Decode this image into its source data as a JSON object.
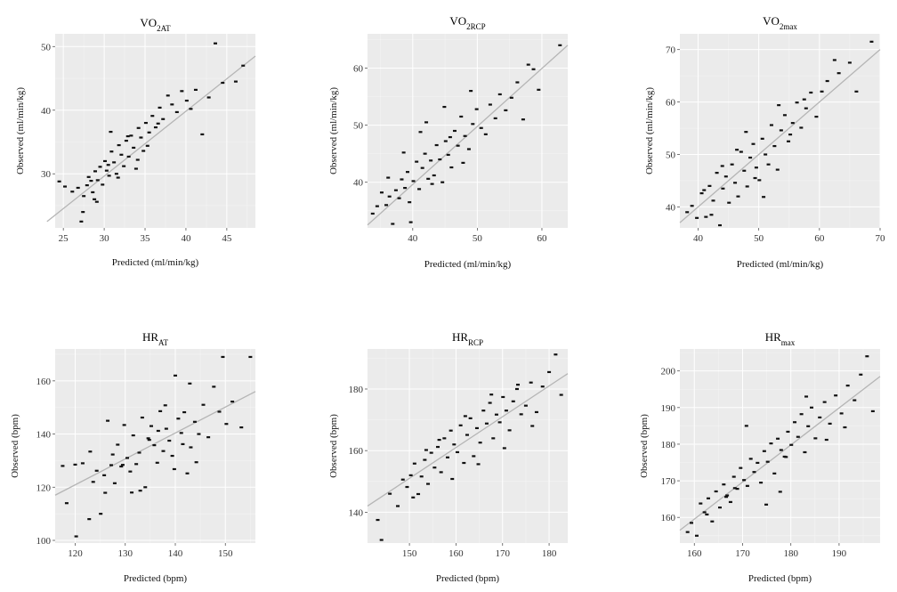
{
  "chart_data": [
    {
      "type": "scatter",
      "title": {
        "main": "VO",
        "sub": "2AT"
      },
      "xlabel": "Predicted (ml/min/kg)",
      "ylabel": "Observed (ml/min/kg)",
      "xlim": [
        24,
        48.5
      ],
      "ylim": [
        21.5,
        52
      ],
      "xticks": [
        25,
        30,
        35,
        40,
        45
      ],
      "yticks": [
        30,
        40,
        50
      ],
      "fit_line": [
        [
          23,
          22.5
        ],
        [
          48.5,
          48.5
        ]
      ],
      "x": [
        24.5,
        25.2,
        26.1,
        26.8,
        27.2,
        27.5,
        27.9,
        28.1,
        28.4,
        28.6,
        28.9,
        29.2,
        29.5,
        29.8,
        30.1,
        30.3,
        30.6,
        30.9,
        31.2,
        31.5,
        31.8,
        32.1,
        32.4,
        32.7,
        33.0,
        33.3,
        33.6,
        33.9,
        34.2,
        34.5,
        34.8,
        35.1,
        35.5,
        35.9,
        36.3,
        36.8,
        37.2,
        37.8,
        38.3,
        38.9,
        39.5,
        40.1,
        40.6,
        41.2,
        42.0,
        42.8,
        43.6,
        44.5,
        46.1,
        47.0,
        27.4,
        28.8,
        30.5,
        31.7,
        32.9,
        34.1,
        35.3,
        36.6,
        29.1,
        30.8
      ],
      "y": [
        28.8,
        28.0,
        27.2,
        27.8,
        22.5,
        26.5,
        28.2,
        29.5,
        28.9,
        27.1,
        30.4,
        29.0,
        31.1,
        28.3,
        32.0,
        30.5,
        29.7,
        33.5,
        31.8,
        30.0,
        34.5,
        33.0,
        31.2,
        35.2,
        32.7,
        36.0,
        34.1,
        30.8,
        37.2,
        35.7,
        33.6,
        38.0,
        36.5,
        39.1,
        37.3,
        40.4,
        38.6,
        42.3,
        40.9,
        39.7,
        43.0,
        41.5,
        40.2,
        43.2,
        36.2,
        42.0,
        50.5,
        44.3,
        44.5,
        47.0,
        24.0,
        26.0,
        31.4,
        29.4,
        35.9,
        32.2,
        34.4,
        37.9,
        25.6,
        36.6
      ]
    },
    {
      "type": "scatter",
      "title": {
        "main": "VO",
        "sub": "2RCP"
      },
      "xlabel": "Predicted (ml/min/kg)",
      "ylabel": "Observed (ml/min/kg)",
      "xlim": [
        33,
        64
      ],
      "ylim": [
        32,
        66
      ],
      "xticks": [
        40,
        50,
        60
      ],
      "yticks": [
        40,
        50,
        60
      ],
      "fit_line": [
        [
          33,
          32.5
        ],
        [
          64,
          64
        ]
      ],
      "x": [
        33.8,
        34.5,
        35.2,
        35.9,
        36.4,
        36.9,
        37.4,
        37.9,
        38.3,
        38.8,
        39.2,
        39.7,
        40.1,
        40.6,
        41.0,
        41.5,
        41.9,
        42.4,
        42.8,
        43.3,
        43.7,
        44.2,
        44.6,
        45.1,
        45.5,
        46.0,
        46.5,
        47.0,
        47.5,
        48.1,
        48.7,
        49.3,
        49.9,
        50.6,
        51.3,
        52.0,
        52.8,
        53.5,
        54.4,
        55.3,
        56.2,
        57.1,
        57.9,
        58.7,
        59.5,
        62.8,
        38.6,
        39.5,
        41.2,
        43.0,
        45.8,
        47.8,
        49.0,
        36.2,
        42.1,
        44.9
      ],
      "y": [
        34.5,
        35.8,
        38.2,
        36.0,
        37.5,
        32.7,
        38.6,
        37.2,
        40.5,
        39.0,
        41.8,
        33.0,
        40.2,
        43.6,
        38.8,
        42.5,
        45.0,
        40.6,
        43.8,
        41.2,
        46.5,
        44.0,
        40.0,
        47.2,
        44.8,
        42.6,
        49.0,
        46.4,
        51.5,
        48.1,
        45.8,
        50.2,
        52.8,
        49.5,
        48.4,
        53.6,
        51.2,
        55.4,
        52.6,
        54.8,
        57.5,
        51.0,
        60.6,
        59.8,
        56.2,
        64.0,
        45.2,
        36.5,
        48.8,
        39.7,
        47.9,
        43.4,
        56.0,
        40.8,
        50.5,
        53.2
      ]
    },
    {
      "type": "scatter",
      "title": {
        "main": "VO",
        "sub": "2max"
      },
      "xlabel": "Predicted (ml/min/kg)",
      "ylabel": "Observed (ml/min/kg)",
      "xlim": [
        37,
        70
      ],
      "ylim": [
        36,
        73
      ],
      "xticks": [
        40,
        50,
        60,
        70
      ],
      "yticks": [
        40,
        50,
        60,
        70
      ],
      "fit_line": [
        [
          37,
          37
        ],
        [
          70,
          70
        ]
      ],
      "x": [
        38.2,
        39.0,
        39.8,
        40.6,
        41.3,
        41.9,
        42.5,
        43.1,
        43.6,
        44.1,
        44.6,
        45.1,
        45.6,
        46.1,
        46.6,
        47.1,
        47.6,
        48.1,
        48.6,
        49.1,
        49.6,
        50.1,
        50.6,
        51.1,
        51.6,
        52.1,
        52.6,
        53.1,
        53.7,
        54.3,
        54.9,
        55.6,
        56.3,
        57.0,
        57.8,
        58.6,
        59.5,
        60.4,
        61.3,
        62.5,
        63.2,
        65.0,
        66.1,
        68.6,
        42.2,
        44.0,
        47.9,
        50.8,
        53.3,
        46.4,
        55.2,
        41.0,
        49.4,
        57.5
      ],
      "y": [
        39.0,
        40.2,
        37.9,
        42.6,
        38.1,
        44.0,
        41.2,
        46.5,
        36.5,
        43.5,
        45.8,
        40.8,
        48.1,
        44.6,
        42.0,
        50.5,
        46.9,
        43.9,
        49.4,
        52.0,
        47.5,
        45.1,
        53.0,
        50.0,
        48.1,
        55.6,
        51.6,
        47.1,
        54.6,
        57.5,
        52.5,
        56.0,
        59.9,
        55.1,
        58.8,
        61.8,
        57.2,
        62.0,
        64.0,
        68.0,
        65.5,
        67.5,
        62.0,
        71.5,
        38.5,
        47.8,
        54.3,
        41.9,
        59.4,
        50.9,
        53.8,
        43.2,
        45.5,
        60.5
      ]
    },
    {
      "type": "scatter",
      "title": {
        "main": "HR",
        "sub": "AT"
      },
      "xlabel": "Predicted (bpm)",
      "ylabel": "Observed (bpm)",
      "xlim": [
        116,
        156
      ],
      "ylim": [
        99,
        172
      ],
      "xticks": [
        120,
        130,
        140,
        150
      ],
      "yticks": [
        100,
        120,
        140,
        160
      ],
      "fit_line": [
        [
          116,
          117
        ],
        [
          156,
          156
        ]
      ],
      "x": [
        117.5,
        118.3,
        120.2,
        121.5,
        122.8,
        123.6,
        124.3,
        125.1,
        125.8,
        126.5,
        127.2,
        127.9,
        128.5,
        129.2,
        129.8,
        130.4,
        131.0,
        131.6,
        132.2,
        132.8,
        133.4,
        134.0,
        134.6,
        135.2,
        135.8,
        136.4,
        137.0,
        137.6,
        138.2,
        138.8,
        139.4,
        140.0,
        140.6,
        141.2,
        141.8,
        142.4,
        143.1,
        143.9,
        144.7,
        145.6,
        146.6,
        147.7,
        148.8,
        150.2,
        151.4,
        153.2,
        155.0,
        123.0,
        126.0,
        129.5,
        133.0,
        136.6,
        139.8,
        142.9,
        120.0,
        127.5,
        131.3,
        134.8,
        138.0,
        141.5,
        144.2,
        149.5
      ],
      "y": [
        128.0,
        114.0,
        101.5,
        129.0,
        108.0,
        122.0,
        126.2,
        110.0,
        124.5,
        145.0,
        128.3,
        121.5,
        136.0,
        127.8,
        143.4,
        131.0,
        125.9,
        139.5,
        128.7,
        133.0,
        146.2,
        120.0,
        138.4,
        143.0,
        135.8,
        129.2,
        148.6,
        133.6,
        142.0,
        137.5,
        131.8,
        162.0,
        145.8,
        140.4,
        148.2,
        125.2,
        135.0,
        144.6,
        140.0,
        151.0,
        138.8,
        157.8,
        148.4,
        143.8,
        152.2,
        142.5,
        169.0,
        133.4,
        117.9,
        128.4,
        118.7,
        141.2,
        126.8,
        159.0,
        128.5,
        132.3,
        118.0,
        137.8,
        150.8,
        136.2,
        129.4,
        169.0
      ]
    },
    {
      "type": "scatter",
      "title": {
        "main": "HR",
        "sub": "RCP"
      },
      "xlabel": "Predicted (bpm)",
      "ylabel": "Observed (bpm)",
      "xlim": [
        141,
        184
      ],
      "ylim": [
        130,
        193
      ],
      "xticks": [
        150,
        160,
        170,
        180
      ],
      "yticks": [
        140,
        160,
        180
      ],
      "fit_line": [
        [
          141,
          142
        ],
        [
          184,
          185
        ]
      ],
      "x": [
        143.2,
        144.0,
        145.8,
        147.5,
        148.6,
        149.5,
        150.3,
        151.1,
        151.9,
        152.6,
        153.3,
        154.0,
        154.7,
        155.4,
        156.1,
        156.8,
        157.5,
        158.2,
        158.9,
        159.6,
        160.3,
        161.0,
        161.7,
        162.4,
        163.1,
        163.8,
        164.5,
        165.2,
        165.9,
        166.6,
        167.3,
        168.0,
        168.7,
        169.4,
        170.1,
        170.8,
        171.5,
        172.3,
        173.1,
        174.0,
        175.0,
        176.1,
        177.3,
        178.6,
        180.0,
        181.4,
        182.6,
        150.8,
        153.6,
        156.4,
        159.2,
        162.0,
        164.8,
        167.6,
        170.4,
        173.3,
        176.4
      ],
      "y": [
        137.5,
        131.0,
        146.0,
        142.0,
        150.6,
        148.2,
        152.0,
        155.8,
        145.9,
        151.6,
        157.0,
        149.2,
        159.3,
        154.5,
        161.2,
        153.0,
        164.0,
        157.8,
        166.5,
        162.0,
        159.5,
        168.2,
        156.0,
        165.1,
        170.5,
        158.2,
        167.3,
        162.6,
        173.0,
        168.8,
        175.5,
        164.0,
        171.7,
        169.2,
        177.4,
        173.0,
        166.6,
        176.0,
        180.0,
        171.8,
        174.6,
        182.1,
        172.5,
        180.8,
        185.5,
        191.2,
        178.1,
        144.8,
        160.2,
        163.5,
        150.8,
        171.2,
        155.6,
        178.2,
        160.8,
        181.4,
        168.0
      ]
    },
    {
      "type": "scatter",
      "title": {
        "main": "HR",
        "sub": "max"
      },
      "xlabel": "Predicted (bpm)",
      "ylabel": "Observed (bpm)",
      "xlim": [
        157,
        198.5
      ],
      "ylim": [
        153,
        206
      ],
      "xticks": [
        160,
        170,
        180,
        190
      ],
      "yticks": [
        160,
        170,
        180,
        190,
        200
      ],
      "fit_line": [
        [
          157,
          156.5
        ],
        [
          198.5,
          198.5
        ]
      ],
      "x": [
        158.6,
        159.4,
        160.5,
        161.3,
        162.1,
        162.9,
        163.7,
        164.5,
        165.3,
        166.1,
        166.8,
        167.5,
        168.2,
        168.9,
        169.6,
        170.3,
        171.0,
        171.7,
        172.4,
        173.1,
        173.8,
        174.5,
        175.2,
        175.9,
        176.6,
        177.3,
        178.0,
        178.7,
        179.4,
        180.1,
        180.8,
        181.5,
        182.2,
        182.9,
        183.6,
        184.3,
        185.1,
        186.0,
        187.0,
        188.1,
        189.3,
        190.5,
        191.8,
        193.2,
        194.5,
        195.8,
        197.0,
        162.6,
        166.6,
        170.8,
        174.9,
        179.0,
        183.2,
        187.4,
        191.2,
        168.4,
        177.8
      ],
      "y": [
        156.0,
        158.5,
        155.0,
        163.8,
        161.4,
        165.2,
        158.9,
        167.1,
        162.7,
        169.0,
        166.0,
        164.2,
        171.1,
        167.8,
        173.5,
        170.2,
        168.6,
        176.0,
        172.4,
        174.9,
        169.5,
        178.1,
        175.2,
        180.2,
        172.0,
        181.5,
        178.4,
        176.6,
        183.4,
        179.8,
        186.0,
        182.0,
        188.2,
        177.8,
        184.9,
        190.0,
        181.6,
        187.3,
        191.5,
        185.6,
        193.3,
        188.4,
        196.0,
        192.0,
        199.0,
        204.0,
        189.0,
        160.8,
        165.6,
        185.0,
        163.5,
        176.5,
        193.0,
        181.2,
        184.6,
        168.0,
        167.0
      ]
    }
  ]
}
